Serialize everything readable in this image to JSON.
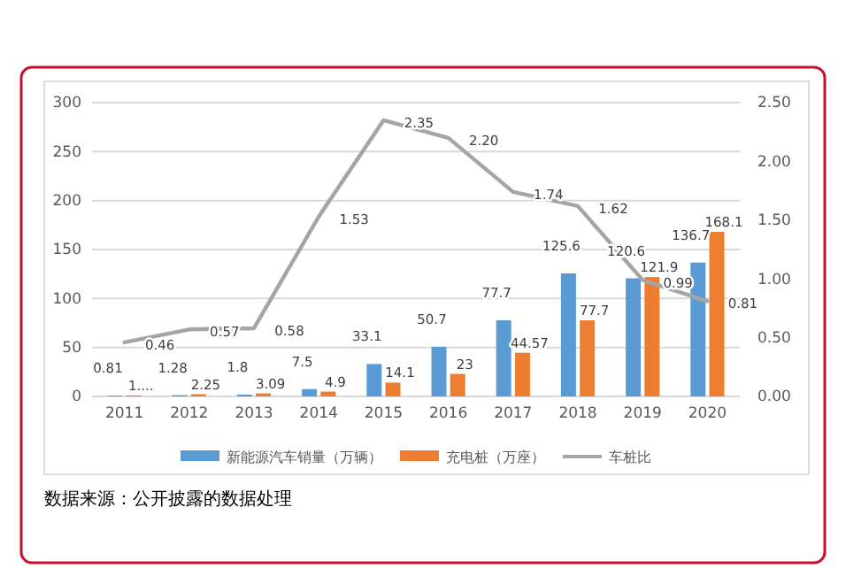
{
  "chart_data": {
    "type": "bar",
    "categories": [
      "2011",
      "2012",
      "2013",
      "2014",
      "2015",
      "2016",
      "2017",
      "2018",
      "2019",
      "2020"
    ],
    "series": [
      {
        "name": "新能源汽车销量（万辆）",
        "color": "#5b9bd5",
        "values": [
          0.81,
          1.28,
          1.8,
          7.5,
          33.1,
          50.7,
          77.7,
          125.6,
          120.6,
          136.7
        ]
      },
      {
        "name": "充电桩（万座）",
        "color": "#ed7d31",
        "values": [
          1,
          2.25,
          3.09,
          4.9,
          14.1,
          23,
          44.57,
          77.7,
          121.9,
          168.1
        ],
        "value_labels": [
          "1....",
          "2.25",
          "3.09",
          "4.9",
          "14.1",
          "23",
          "44.57",
          "77.7",
          "121.9",
          "168.1"
        ]
      },
      {
        "name": "车桩比",
        "type": "line",
        "axis": "y2",
        "color": "#a5a5a5",
        "values": [
          0.46,
          0.57,
          0.58,
          1.53,
          2.35,
          2.2,
          1.74,
          1.62,
          0.99,
          0.81
        ],
        "value_labels": [
          "0.46",
          "0.57",
          "0.58",
          "1.53",
          "2.35",
          "2.20",
          "1.74",
          "1.62",
          "0.99",
          "0.81"
        ]
      }
    ],
    "ylim": [
      0,
      300
    ],
    "yticks": [
      0,
      50,
      100,
      150,
      200,
      250,
      300
    ],
    "y2lim": [
      0,
      2.5
    ],
    "y2ticks": [
      {
        "value": 0,
        "label": "0.00"
      },
      {
        "value": 0.5,
        "label": "0.50"
      },
      {
        "value": 1,
        "label": "1.00"
      },
      {
        "value": 1.5,
        "label": "1.50"
      },
      {
        "value": 2,
        "label": "2.00"
      },
      {
        "value": 2.5,
        "label": "2.50"
      }
    ],
    "grid": "y",
    "legend": "bottom",
    "data_labels": true,
    "marker": "none",
    "line_style": "solid",
    "annotations": [
      "数据来源：公开披露的数据处理"
    ]
  }
}
